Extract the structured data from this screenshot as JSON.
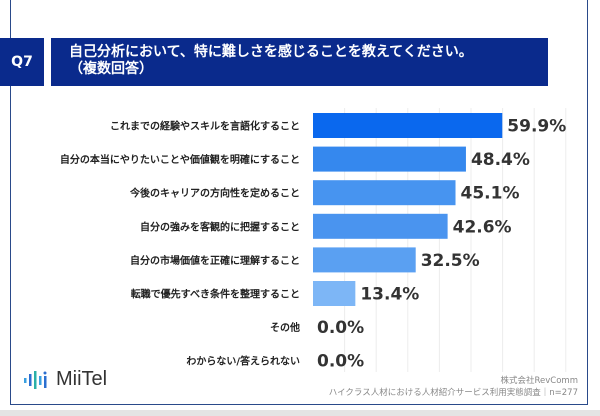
{
  "question": {
    "number": "Q7",
    "title_line1": "自己分析において、特に難しさを感じることを教えてください。",
    "title_line2": "（複数回答）"
  },
  "chart_data": {
    "type": "bar",
    "orientation": "horizontal",
    "categories": [
      "これまでの経験やスキルを言語化すること",
      "自分の本当にやりたいことや価値観を明確にすること",
      "今後のキャリアの方向性を定めること",
      "自分の強みを客観的に把握すること",
      "自分の市場価値を正確に理解すること",
      "転職で優先すべき条件を整理すること",
      "その他",
      "わからない/答えられない"
    ],
    "values": [
      59.9,
      48.4,
      45.1,
      42.6,
      32.5,
      13.4,
      0.0,
      0.0
    ],
    "value_labels": [
      "59.9%",
      "48.4%",
      "45.1%",
      "42.6%",
      "32.5%",
      "13.4%",
      "0.0%",
      "0.0%"
    ],
    "xlim": [
      0,
      80
    ],
    "grid": true,
    "colors": [
      "#0a68ee",
      "#3588ee",
      "#4794f0",
      "#4a94ef",
      "#5aa0f2",
      "#7db6f6"
    ]
  },
  "footer": {
    "logo": "MiiTel",
    "company": "株式会社RevComm",
    "source": "ハイクラス人材における人材紹介サービス利用実態調査｜n=277"
  }
}
